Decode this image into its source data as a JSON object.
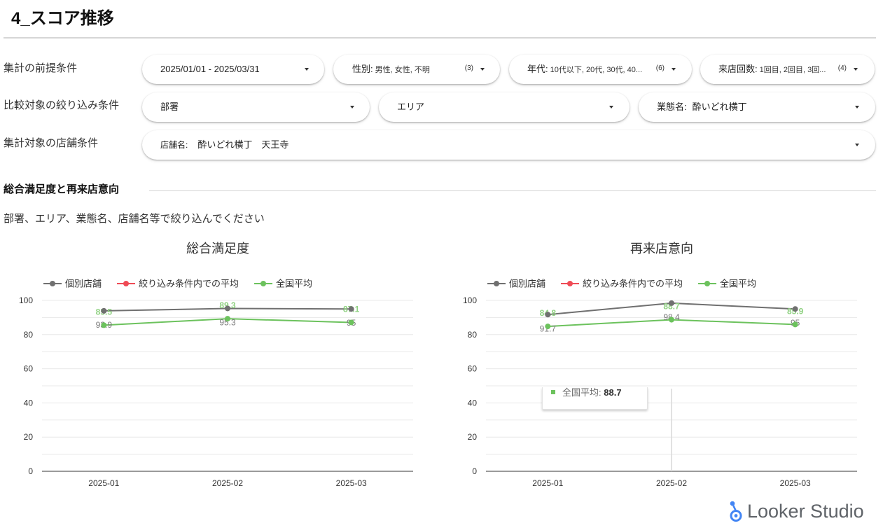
{
  "page": {
    "title": "4_スコア推移"
  },
  "filters": {
    "base_conditions": {
      "label": "集計の前提条件",
      "date_range": {
        "value": "2025/01/01 - 2025/03/31"
      },
      "gender": {
        "name": "性別:",
        "value": "男性, 女性, 不明",
        "count": "(3)"
      },
      "age": {
        "name": "年代:",
        "value": "10代以下, 20代, 30代, 40...",
        "count": "(6)"
      },
      "visits": {
        "name": "来店回数:",
        "value": "1回目, 2回目, 3回...",
        "count": "(4)"
      }
    },
    "comparison_conditions": {
      "label": "比較対象の絞り込み条件",
      "department": {
        "name": "部署"
      },
      "area": {
        "name": "エリア"
      },
      "business_type": {
        "name": "業態名:",
        "value": "酔いどれ横丁"
      }
    },
    "store_conditions": {
      "label": "集計対象の店舗条件",
      "store": {
        "name": "店舗名:",
        "value": "酔いどれ横丁　天王寺"
      }
    }
  },
  "section": {
    "title": "総合満足度と再来店意向",
    "instruction": "部署、エリア、業態名、店舗名等で絞り込んでください"
  },
  "chart_data": [
    {
      "type": "line",
      "title": "総合満足度",
      "categories": [
        "2025-01",
        "2025-02",
        "2025-03"
      ],
      "yticks": [
        0,
        20,
        40,
        60,
        80,
        100
      ],
      "ylim": [
        0,
        100
      ],
      "grid": true,
      "legend_position": "top-left",
      "series": [
        {
          "name": "個別店舗",
          "color": "#707070",
          "values": [
            93.9,
            95.3,
            95
          ]
        },
        {
          "name": "絞り込み条件内での平均",
          "color": "#ef4b56",
          "values": [
            null,
            null,
            null
          ]
        },
        {
          "name": "全国平均",
          "color": "#6cc25d",
          "values": [
            85.5,
            89.3,
            87.1
          ]
        }
      ]
    },
    {
      "type": "line",
      "title": "再来店意向",
      "categories": [
        "2025-01",
        "2025-02",
        "2025-03"
      ],
      "yticks": [
        0,
        20,
        40,
        60,
        80,
        100
      ],
      "ylim": [
        0,
        100
      ],
      "grid": true,
      "legend_position": "top-left",
      "series": [
        {
          "name": "個別店舗",
          "color": "#707070",
          "values": [
            91.7,
            98.4,
            95
          ]
        },
        {
          "name": "絞り込み条件内での平均",
          "color": "#ef4b56",
          "values": [
            null,
            null,
            null
          ]
        },
        {
          "name": "全国平均",
          "color": "#6cc25d",
          "values": [
            84.8,
            88.7,
            85.9
          ]
        }
      ],
      "tooltip": {
        "label": "全国平均:",
        "value": "88.7"
      }
    }
  ],
  "footer": {
    "brand": "Looker Studio"
  }
}
